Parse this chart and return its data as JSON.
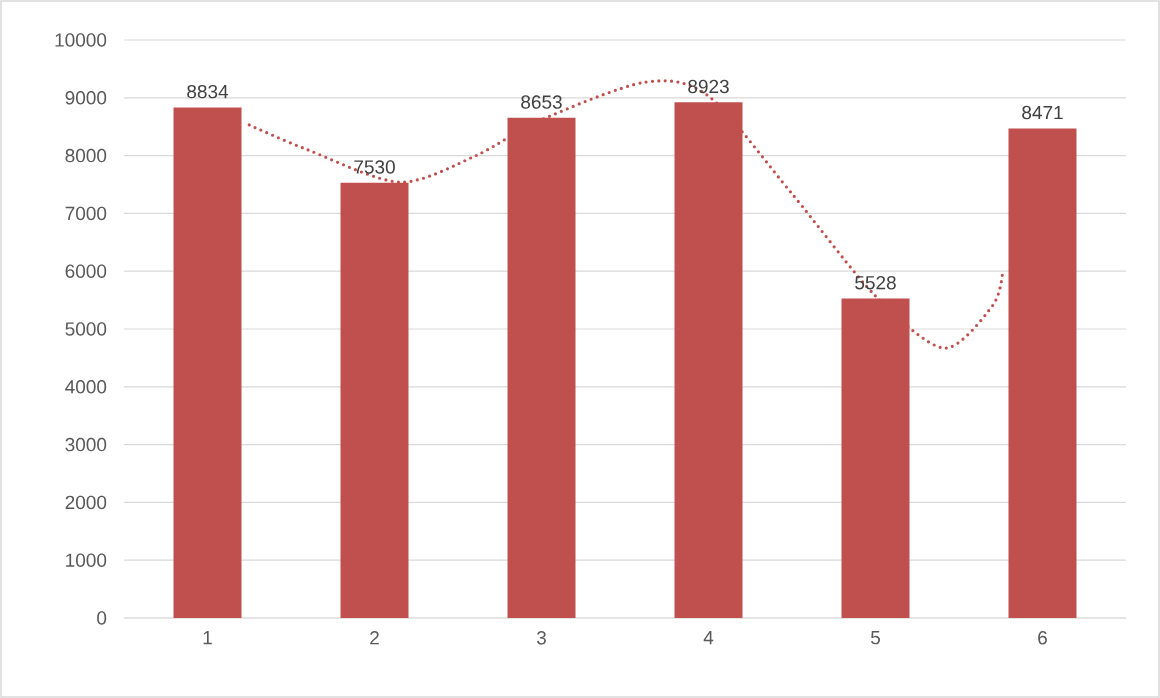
{
  "chart_data": {
    "type": "bar",
    "x": [
      1,
      2,
      3,
      4,
      5,
      6
    ],
    "xlim": [
      0.5,
      6.5
    ],
    "xticks": [
      1,
      2,
      3,
      4,
      5,
      6
    ],
    "ylim": [
      0,
      10000
    ],
    "yticks": [
      0,
      1000,
      2000,
      3000,
      4000,
      5000,
      6000,
      7000,
      8000,
      9000,
      10000
    ],
    "grid": "y",
    "series": [
      {
        "color": "#c0504d",
        "data_labels": true,
        "values": [
          8834,
          7530,
          8653,
          8923,
          5528,
          8471
        ]
      },
      {
        "type": "line",
        "color": "#c0504d",
        "line_style": "dotted",
        "marker": "none",
        "x": [
          1.25,
          1.6,
          2.15,
          2.6,
          3,
          3.62,
          4,
          4.5,
          5,
          5.41,
          5.7,
          5.76
        ],
        "values": [
          8530,
          8100,
          7540,
          7990,
          8620,
          9270,
          9030,
          7340,
          5570,
          4670,
          5400,
          5950
        ]
      }
    ]
  }
}
